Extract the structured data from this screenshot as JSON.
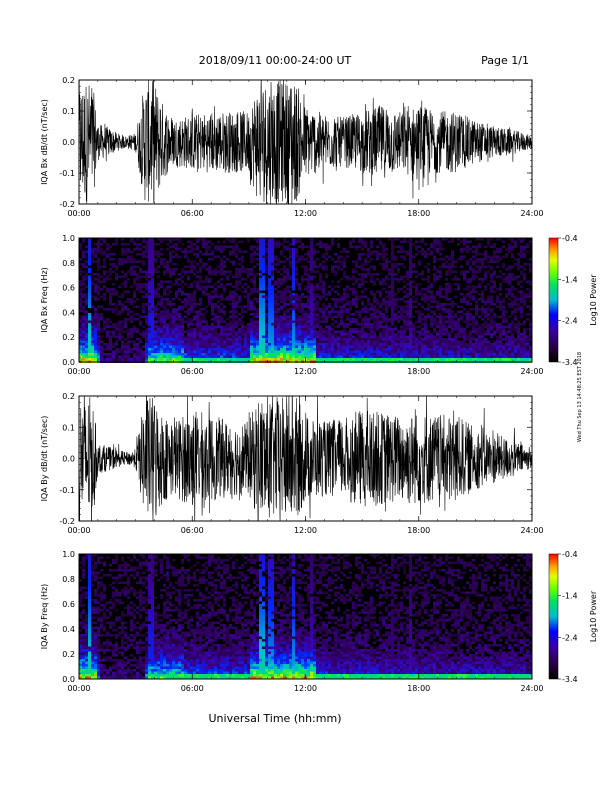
{
  "header": {
    "title": "2018/09/11   00:00-24:00 UT",
    "page": "Page 1/1"
  },
  "side_note": "Wed Thu Sep 13 14:48:25 EST 2018",
  "footer": {
    "xlabel": "Universal Time (hh:mm)"
  },
  "chart_data": [
    {
      "type": "line",
      "ylabel": "IQA Bx dB/dt (nT/sec)",
      "ylim": [
        -0.2,
        0.2
      ],
      "yticks": [
        "0.2",
        "0.1",
        "0.0",
        "-0.1",
        "-0.2"
      ],
      "xlim": [
        0,
        24
      ],
      "xticks": [
        "00:00",
        "06:00",
        "12:00",
        "18:00",
        "24:00"
      ],
      "series": [
        {
          "x": [
            0,
            0.3,
            0.7,
            1,
            1.5,
            2,
            2.5,
            3,
            3.5,
            4,
            4.5,
            5,
            6,
            7,
            8,
            9,
            9.5,
            10,
            11,
            11.5,
            12,
            13,
            14,
            15,
            16,
            17,
            18,
            19,
            20,
            21,
            22,
            23,
            24
          ],
          "amplitude": [
            0.2,
            0.2,
            0.2,
            0.06,
            0.05,
            0.03,
            0.02,
            0.03,
            0.2,
            0.2,
            0.12,
            0.08,
            0.09,
            0.1,
            0.1,
            0.1,
            0.2,
            0.2,
            0.2,
            0.2,
            0.12,
            0.09,
            0.08,
            0.1,
            0.12,
            0.1,
            0.12,
            0.1,
            0.1,
            0.07,
            0.05,
            0.04,
            0.02
          ]
        }
      ]
    },
    {
      "type": "heatmap",
      "ylabel": "IQA Bx Freq (Hz)",
      "ylim": [
        0,
        1
      ],
      "yticks": [
        "1.0",
        "0.8",
        "0.6",
        "0.4",
        "0.2",
        "0.0"
      ],
      "xlim": [
        0,
        24
      ],
      "xticks": [
        "00:00",
        "06:00",
        "12:00",
        "18:00",
        "24:00"
      ],
      "colorbar": {
        "label": "Log10 Power",
        "range": [
          -3.4,
          -0.4
        ],
        "ticks": [
          "-0.4",
          "-1.4",
          "-2.4",
          "-3.4"
        ]
      }
    },
    {
      "type": "line",
      "ylabel": "IQA By dB/dt (nT/sec)",
      "ylim": [
        -0.2,
        0.2
      ],
      "yticks": [
        "0.2",
        "0.1",
        "0.0",
        "-0.1",
        "-0.2"
      ],
      "xlim": [
        0,
        24
      ],
      "xticks": [
        "00:00",
        "06:00",
        "12:00",
        "18:00",
        "24:00"
      ],
      "series": [
        {
          "x": [
            0,
            0.3,
            0.7,
            1,
            1.5,
            2,
            2.5,
            3,
            3.5,
            4,
            4.5,
            5,
            6,
            7,
            8,
            9,
            9.5,
            10,
            11,
            11.5,
            12,
            13,
            14,
            15,
            16,
            17,
            18,
            19,
            20,
            21,
            22,
            23,
            24
          ],
          "amplitude": [
            0.2,
            0.2,
            0.2,
            0.05,
            0.04,
            0.03,
            0.02,
            0.03,
            0.2,
            0.2,
            0.14,
            0.12,
            0.16,
            0.14,
            0.12,
            0.12,
            0.2,
            0.2,
            0.2,
            0.2,
            0.14,
            0.12,
            0.13,
            0.16,
            0.15,
            0.14,
            0.15,
            0.14,
            0.14,
            0.1,
            0.08,
            0.06,
            0.03
          ]
        }
      ]
    },
    {
      "type": "heatmap",
      "ylabel": "IQA By Freq (Hz)",
      "ylim": [
        0,
        1
      ],
      "yticks": [
        "1.0",
        "0.8",
        "0.6",
        "0.4",
        "0.2",
        "0.0"
      ],
      "xlim": [
        0,
        24
      ],
      "xticks": [
        "00:00",
        "06:00",
        "12:00",
        "18:00",
        "24:00"
      ],
      "colorbar": {
        "label": "Log10 Power",
        "range": [
          -3.4,
          -0.4
        ],
        "ticks": [
          "-0.4",
          "-1.4",
          "-2.4",
          "-3.4"
        ]
      }
    }
  ]
}
